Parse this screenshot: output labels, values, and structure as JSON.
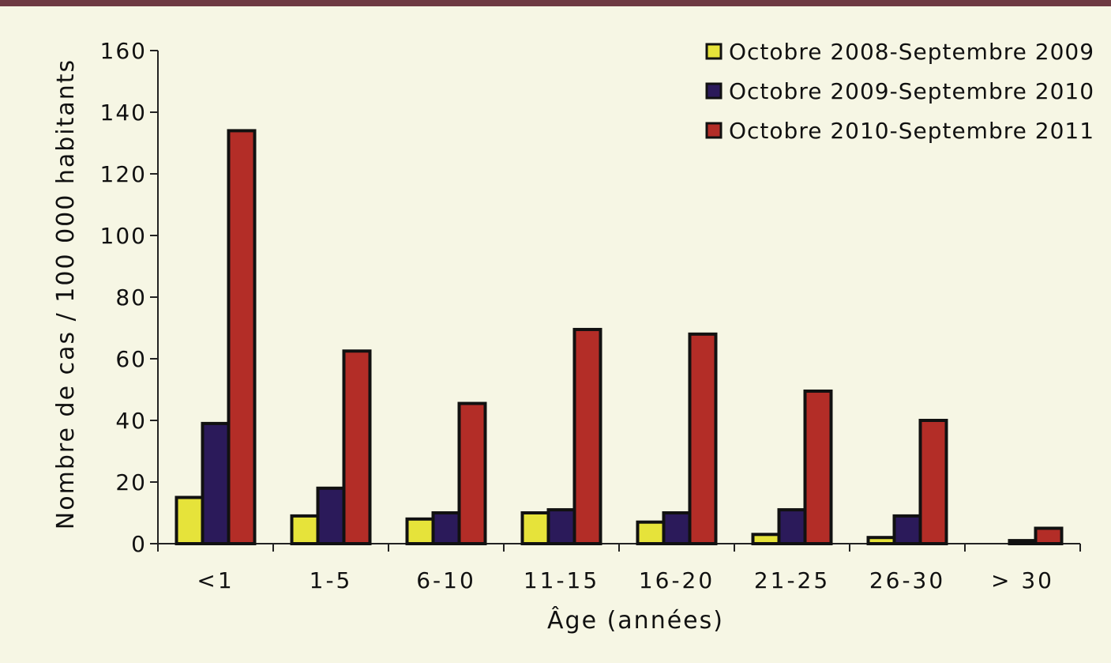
{
  "chart_data": {
    "type": "bar",
    "title": "",
    "xlabel": "Âge (années)",
    "ylabel": "Nombre de cas / 100 000 habitants",
    "ylim": [
      0,
      160
    ],
    "yticks": [
      0,
      20,
      40,
      60,
      80,
      100,
      120,
      140,
      160
    ],
    "grid": false,
    "legend_position": "top-right",
    "categories": [
      "<1",
      "1-5",
      "6-10",
      "11-15",
      "16-20",
      "21-25",
      "26-30",
      "> 30"
    ],
    "series": [
      {
        "name": "Octobre 2008-Septembre 2009",
        "color": "#e6e33a",
        "values": [
          15,
          9,
          8,
          10,
          7,
          3,
          2,
          0
        ]
      },
      {
        "name": "Octobre 2009-Septembre 2010",
        "color": "#2b1a5a",
        "values": [
          39,
          18,
          10,
          11,
          10,
          11,
          9,
          1
        ]
      },
      {
        "name": "Octobre 2010-Septembre 2011",
        "color": "#b32d27",
        "values": [
          134,
          62.5,
          45.5,
          69.5,
          68,
          49.5,
          40,
          5
        ]
      }
    ]
  }
}
